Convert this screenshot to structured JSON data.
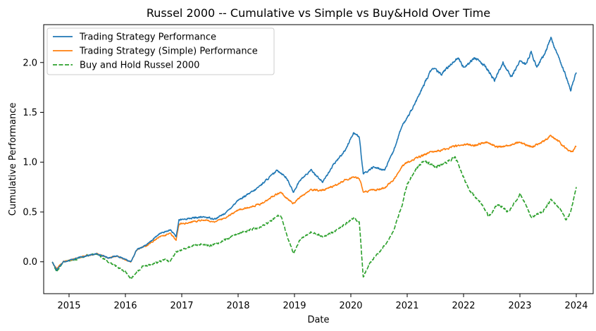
{
  "chart_data": {
    "type": "line",
    "title": "Russel 2000 -- Cumulative vs Simple vs Buy&Hold Over Time",
    "xlabel": "Date",
    "ylabel": "Cumulative Performance",
    "xlim": [
      2014.55,
      2024.3
    ],
    "ylim": [
      -0.32,
      2.38
    ],
    "x_ticks": [
      2015,
      2016,
      2017,
      2018,
      2019,
      2020,
      2021,
      2022,
      2023,
      2024
    ],
    "x_tick_labels": [
      "2015",
      "2016",
      "2017",
      "2018",
      "2019",
      "2020",
      "2021",
      "2022",
      "2023",
      "2024"
    ],
    "y_ticks": [
      0.0,
      0.5,
      1.0,
      1.5,
      2.0
    ],
    "y_tick_labels": [
      "0.0",
      "0.5",
      "1.0",
      "1.5",
      "2.0"
    ],
    "grid": false,
    "legend_position": "top-left",
    "series": [
      {
        "name": "Trading Strategy Performance",
        "color": "#1f77b4",
        "style": "solid",
        "points": [
          [
            2014.7,
            0.0
          ],
          [
            2014.78,
            -0.08
          ],
          [
            2014.9,
            0.0
          ],
          [
            2015.1,
            0.03
          ],
          [
            2015.3,
            0.06
          ],
          [
            2015.5,
            0.08
          ],
          [
            2015.7,
            0.04
          ],
          [
            2015.85,
            0.06
          ],
          [
            2016.0,
            0.02
          ],
          [
            2016.1,
            0.0
          ],
          [
            2016.2,
            0.12
          ],
          [
            2016.4,
            0.18
          ],
          [
            2016.6,
            0.28
          ],
          [
            2016.8,
            0.32
          ],
          [
            2016.9,
            0.25
          ],
          [
            2016.95,
            0.42
          ],
          [
            2017.2,
            0.44
          ],
          [
            2017.4,
            0.45
          ],
          [
            2017.6,
            0.43
          ],
          [
            2017.8,
            0.5
          ],
          [
            2018.0,
            0.62
          ],
          [
            2018.1,
            0.65
          ],
          [
            2018.3,
            0.72
          ],
          [
            2018.5,
            0.82
          ],
          [
            2018.7,
            0.92
          ],
          [
            2018.85,
            0.85
          ],
          [
            2018.98,
            0.7
          ],
          [
            2019.1,
            0.82
          ],
          [
            2019.3,
            0.92
          ],
          [
            2019.5,
            0.8
          ],
          [
            2019.7,
            0.98
          ],
          [
            2019.9,
            1.12
          ],
          [
            2020.05,
            1.3
          ],
          [
            2020.15,
            1.25
          ],
          [
            2020.22,
            0.88
          ],
          [
            2020.4,
            0.95
          ],
          [
            2020.6,
            0.92
          ],
          [
            2020.75,
            1.1
          ],
          [
            2020.9,
            1.35
          ],
          [
            2021.0,
            1.45
          ],
          [
            2021.15,
            1.6
          ],
          [
            2021.3,
            1.78
          ],
          [
            2021.45,
            1.95
          ],
          [
            2021.6,
            1.88
          ],
          [
            2021.75,
            1.97
          ],
          [
            2021.9,
            2.05
          ],
          [
            2022.0,
            1.95
          ],
          [
            2022.2,
            2.05
          ],
          [
            2022.4,
            1.95
          ],
          [
            2022.55,
            1.82
          ],
          [
            2022.7,
            2.0
          ],
          [
            2022.85,
            1.85
          ],
          [
            2023.0,
            2.02
          ],
          [
            2023.1,
            1.98
          ],
          [
            2023.2,
            2.1
          ],
          [
            2023.3,
            1.95
          ],
          [
            2023.45,
            2.1
          ],
          [
            2023.55,
            2.25
          ],
          [
            2023.65,
            2.1
          ],
          [
            2023.8,
            1.9
          ],
          [
            2023.9,
            1.72
          ],
          [
            2024.0,
            1.9
          ]
        ]
      },
      {
        "name": "Trading Strategy (Simple) Performance",
        "color": "#ff7f0e",
        "style": "solid",
        "points": [
          [
            2014.7,
            0.0
          ],
          [
            2014.78,
            -0.07
          ],
          [
            2014.9,
            0.0
          ],
          [
            2015.1,
            0.03
          ],
          [
            2015.3,
            0.06
          ],
          [
            2015.5,
            0.08
          ],
          [
            2015.7,
            0.04
          ],
          [
            2015.85,
            0.06
          ],
          [
            2016.0,
            0.02
          ],
          [
            2016.1,
            0.0
          ],
          [
            2016.2,
            0.12
          ],
          [
            2016.4,
            0.17
          ],
          [
            2016.6,
            0.25
          ],
          [
            2016.8,
            0.28
          ],
          [
            2016.9,
            0.22
          ],
          [
            2016.95,
            0.38
          ],
          [
            2017.2,
            0.4
          ],
          [
            2017.4,
            0.42
          ],
          [
            2017.6,
            0.4
          ],
          [
            2017.8,
            0.45
          ],
          [
            2018.0,
            0.52
          ],
          [
            2018.2,
            0.55
          ],
          [
            2018.4,
            0.58
          ],
          [
            2018.6,
            0.65
          ],
          [
            2018.75,
            0.7
          ],
          [
            2018.9,
            0.62
          ],
          [
            2018.98,
            0.58
          ],
          [
            2019.1,
            0.65
          ],
          [
            2019.3,
            0.72
          ],
          [
            2019.5,
            0.72
          ],
          [
            2019.7,
            0.76
          ],
          [
            2019.9,
            0.82
          ],
          [
            2020.05,
            0.85
          ],
          [
            2020.15,
            0.84
          ],
          [
            2020.22,
            0.7
          ],
          [
            2020.4,
            0.72
          ],
          [
            2020.6,
            0.74
          ],
          [
            2020.75,
            0.82
          ],
          [
            2020.9,
            0.95
          ],
          [
            2021.0,
            1.0
          ],
          [
            2021.2,
            1.05
          ],
          [
            2021.4,
            1.1
          ],
          [
            2021.6,
            1.12
          ],
          [
            2021.8,
            1.15
          ],
          [
            2022.0,
            1.18
          ],
          [
            2022.2,
            1.17
          ],
          [
            2022.4,
            1.2
          ],
          [
            2022.6,
            1.15
          ],
          [
            2022.8,
            1.17
          ],
          [
            2023.0,
            1.2
          ],
          [
            2023.2,
            1.15
          ],
          [
            2023.4,
            1.2
          ],
          [
            2023.55,
            1.27
          ],
          [
            2023.7,
            1.2
          ],
          [
            2023.85,
            1.12
          ],
          [
            2023.92,
            1.1
          ],
          [
            2024.0,
            1.16
          ]
        ]
      },
      {
        "name": "Buy and Hold Russel 2000",
        "color": "#2ca02c",
        "style": "dashed",
        "points": [
          [
            2014.7,
            0.0
          ],
          [
            2014.78,
            -0.1
          ],
          [
            2014.9,
            0.0
          ],
          [
            2015.1,
            0.02
          ],
          [
            2015.3,
            0.06
          ],
          [
            2015.5,
            0.08
          ],
          [
            2015.7,
            0.0
          ],
          [
            2015.85,
            -0.05
          ],
          [
            2016.0,
            -0.1
          ],
          [
            2016.1,
            -0.17
          ],
          [
            2016.3,
            -0.05
          ],
          [
            2016.5,
            -0.02
          ],
          [
            2016.7,
            0.02
          ],
          [
            2016.8,
            0.0
          ],
          [
            2016.9,
            0.1
          ],
          [
            2017.1,
            0.14
          ],
          [
            2017.3,
            0.18
          ],
          [
            2017.5,
            0.16
          ],
          [
            2017.7,
            0.2
          ],
          [
            2017.9,
            0.26
          ],
          [
            2018.0,
            0.28
          ],
          [
            2018.2,
            0.32
          ],
          [
            2018.4,
            0.35
          ],
          [
            2018.6,
            0.42
          ],
          [
            2018.75,
            0.48
          ],
          [
            2018.85,
            0.3
          ],
          [
            2018.98,
            0.08
          ],
          [
            2019.1,
            0.22
          ],
          [
            2019.3,
            0.3
          ],
          [
            2019.5,
            0.25
          ],
          [
            2019.7,
            0.3
          ],
          [
            2019.9,
            0.38
          ],
          [
            2020.05,
            0.44
          ],
          [
            2020.15,
            0.4
          ],
          [
            2020.22,
            -0.15
          ],
          [
            2020.35,
            0.0
          ],
          [
            2020.55,
            0.12
          ],
          [
            2020.75,
            0.3
          ],
          [
            2020.9,
            0.55
          ],
          [
            2021.0,
            0.78
          ],
          [
            2021.15,
            0.92
          ],
          [
            2021.3,
            1.02
          ],
          [
            2021.5,
            0.95
          ],
          [
            2021.7,
            1.0
          ],
          [
            2021.85,
            1.05
          ],
          [
            2022.0,
            0.85
          ],
          [
            2022.1,
            0.72
          ],
          [
            2022.3,
            0.6
          ],
          [
            2022.45,
            0.45
          ],
          [
            2022.6,
            0.58
          ],
          [
            2022.8,
            0.5
          ],
          [
            2023.0,
            0.68
          ],
          [
            2023.1,
            0.58
          ],
          [
            2023.2,
            0.45
          ],
          [
            2023.4,
            0.5
          ],
          [
            2023.55,
            0.62
          ],
          [
            2023.7,
            0.55
          ],
          [
            2023.82,
            0.42
          ],
          [
            2023.9,
            0.5
          ],
          [
            2024.0,
            0.75
          ]
        ]
      }
    ]
  }
}
